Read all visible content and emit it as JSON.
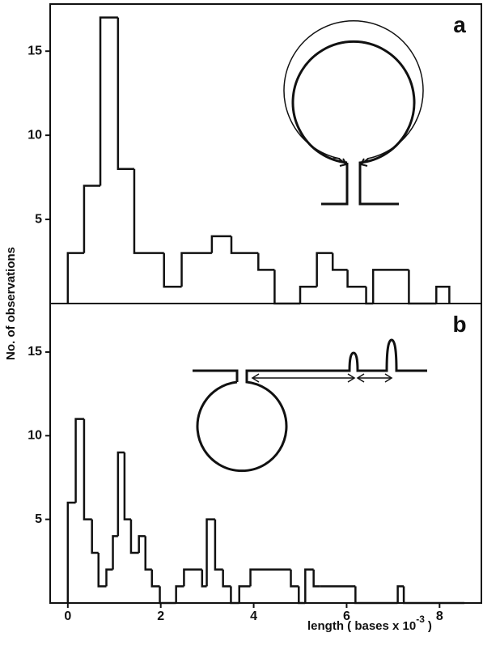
{
  "chart_data": [
    {
      "type": "histogram",
      "panel_label": "a",
      "ylabel": "No. of observations",
      "bins": [
        0,
        0.35,
        0.7,
        1.08,
        1.43,
        2.07,
        2.45,
        3.1,
        3.52,
        4.1,
        4.45,
        5.0,
        5.36,
        5.7,
        6.02,
        6.42,
        6.57,
        7.34,
        7.93,
        8.21
      ],
      "values": [
        3,
        7,
        17,
        8,
        3,
        1,
        3,
        4,
        3,
        2,
        0,
        1,
        3,
        2,
        1,
        0,
        2,
        0,
        1
      ],
      "color": "#111111",
      "xlim": [
        -0.38,
        8.9
      ],
      "ylim": [
        0,
        17.8
      ],
      "yticks": [
        5,
        10,
        15
      ]
    },
    {
      "type": "histogram",
      "panel_label": "b",
      "xlabel": "length ( bases x 10",
      "xlabel_exponent": "-3",
      "xlabel_end": ")",
      "bins": [
        0,
        0.17,
        0.35,
        0.52,
        0.66,
        0.83,
        0.97,
        1.08,
        1.22,
        1.36,
        1.53,
        1.67,
        1.81,
        1.98,
        2.33,
        2.5,
        2.89,
        2.99,
        3.17,
        3.34,
        3.51,
        3.69,
        3.93,
        4.8,
        4.97,
        5.11,
        5.29,
        5.43,
        6.19,
        7.1,
        7.23,
        8.54
      ],
      "values": [
        6,
        11,
        5,
        3,
        1,
        2,
        4,
        9,
        5,
        3,
        4,
        2,
        1,
        0,
        1,
        2,
        1,
        5,
        2,
        1,
        0,
        1,
        2,
        1,
        0,
        2,
        1,
        1,
        0,
        1,
        0
      ],
      "color": "#111111",
      "xlim": [
        -0.38,
        8.9
      ],
      "xticks": [
        0,
        2,
        4,
        6,
        8
      ],
      "ylim": [
        0,
        17.9
      ],
      "yticks": [
        5,
        10,
        15
      ]
    }
  ]
}
